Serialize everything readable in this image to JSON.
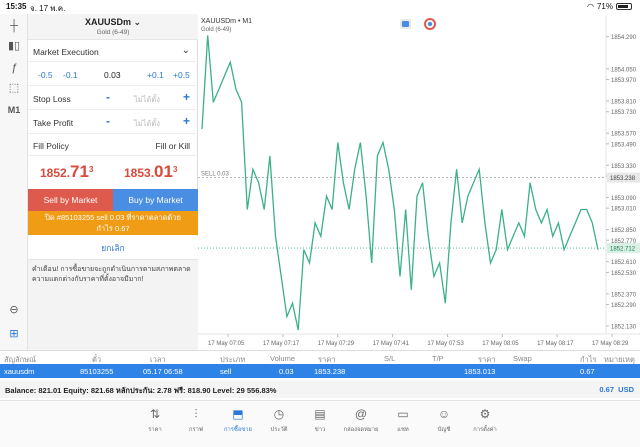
{
  "status": {
    "time": "15:35",
    "date": "จ. 17 พ.ค.",
    "battery": "71%"
  },
  "symbol": {
    "name": "XAUUSDm",
    "description": "Gold (6-49)"
  },
  "order": {
    "execution": "Market Execution",
    "volume": {
      "minus_big": "-0.5",
      "minus_small": "-0.1",
      "value": "0.03",
      "plus_small": "+0.1",
      "plus_big": "+0.5"
    },
    "stop_loss": {
      "label": "Stop Loss",
      "placeholder": "ไม่ได้ตั้ง"
    },
    "take_profit": {
      "label": "Take Profit",
      "placeholder": "ไม่ได้ตั้ง"
    },
    "fill_policy": {
      "label": "Fill Policy",
      "value": "Fill or Kill"
    },
    "bid": {
      "main": "1852.",
      "big": "71",
      "sup": "3"
    },
    "ask": {
      "main": "1853.",
      "big": "01",
      "sup": "3"
    },
    "sell_label": "Sell by Market",
    "buy_label": "Buy by Market",
    "close_line1": "ปิด #85103255 sell 0.03 ที่ราคาตลาดด้วย",
    "close_line2": "กำไร 0.67",
    "cancel_label": "ยกเลิก",
    "warning": "คำเตือน! การซื้อขายจะถูกดำเนินการตามสภาพตลาด ความแตกต่างกับราคาที่ตั้งอาจมีมาก!"
  },
  "toolbar": {
    "m1_label": "M1"
  },
  "chart_data": {
    "type": "line",
    "title": "XAUUSDm • M1",
    "subtitle": "Gold (6-49)",
    "sell_line_label": "SELL 0.03",
    "sell_price": 1853.238,
    "current_price": 1852.712,
    "current_price_label": "1852.712",
    "sell_price_label": "1853.238",
    "ylim": [
      1852.1,
      1854.4
    ],
    "yticks": [
      "1854.290",
      "1854.050",
      "1853.810",
      "1853.570",
      "1853.330",
      "1853.090",
      "1852.850",
      "1852.610",
      "1852.370",
      "1852.130"
    ],
    "yticks_extra": [
      "1853.970",
      "1853.730",
      "1853.490",
      "1853.250",
      "1853.010",
      "1852.770",
      "1852.530",
      "1852.290"
    ],
    "xticks": [
      "17 May 07:05",
      "17 May 07:17",
      "17 May 07:29",
      "17 May 07:41",
      "17 May 07:53",
      "17 May 08:05",
      "17 May 08:17",
      "17 May 08:29"
    ],
    "series": [
      {
        "values": [
          1853.6,
          1854.3,
          1853.8,
          1853.9,
          1854.0,
          1854.1,
          1853.9,
          1853.8,
          1853.0,
          1853.3,
          1853.2,
          1853.0,
          1853.4,
          1852.8,
          1852.5,
          1852.2,
          1852.3,
          1852.1,
          1852.7,
          1852.6,
          1852.9,
          1852.8,
          1853.1,
          1853.0,
          1853.5,
          1853.2,
          1853.0,
          1853.3,
          1853.5,
          1853.1,
          1852.6,
          1853.4,
          1853.5,
          1853.3,
          1853.0,
          1852.5,
          1853.0,
          1852.4,
          1853.1,
          1853.2,
          1852.8,
          1852.5,
          1852.6,
          1852.3,
          1852.9,
          1853.3,
          1852.9,
          1853.1,
          1853.2,
          1853.3,
          1852.9,
          1852.6,
          1852.7,
          1853.0,
          1852.7,
          1852.8,
          1852.9,
          1852.8,
          1853.2,
          1853.0,
          1852.9,
          1853.0,
          1852.8,
          1852.9,
          1852.7,
          1852.8,
          1852.9,
          1853.0,
          1853.0,
          1852.9,
          1852.7
        ]
      }
    ],
    "grid": false
  },
  "positions": {
    "headers": [
      "สัญลักษณ์",
      "ตั๋ว",
      "เวลา",
      "ประเภท",
      "Volume",
      "ราคา",
      "S/L",
      "T/P",
      "ราคา",
      "Swap",
      "กำไร",
      "หมายเหตุ"
    ],
    "row": {
      "symbol": "xauusdm",
      "ticket": "85103255",
      "time": "05.17 06:58",
      "type": "sell",
      "volume": "0.03",
      "price": "1853.238",
      "current": "1853.013",
      "profit": "0.67"
    },
    "balance_text": "Balance: 821.01  Equity: 821.68  หลักประกัน: 2.78  ฟรี: 818.90  Level: 29 556.83%",
    "total_profit": "0.67",
    "currency": "USD"
  },
  "nav": {
    "items": [
      {
        "label": "ราคา",
        "icon": "quotes-icon"
      },
      {
        "label": "กราฟ",
        "icon": "chart-icon"
      },
      {
        "label": "การซื้อขาย",
        "icon": "trade-icon"
      },
      {
        "label": "ประวัติ",
        "icon": "history-icon"
      },
      {
        "label": "ข่าว",
        "icon": "news-icon"
      },
      {
        "label": "กล่องจดหมาย",
        "icon": "mailbox-icon"
      },
      {
        "label": "แชท",
        "icon": "chat-icon"
      },
      {
        "label": "บัญชี",
        "icon": "accounts-icon"
      },
      {
        "label": "การตั้งค่า",
        "icon": "settings-icon"
      }
    ]
  }
}
